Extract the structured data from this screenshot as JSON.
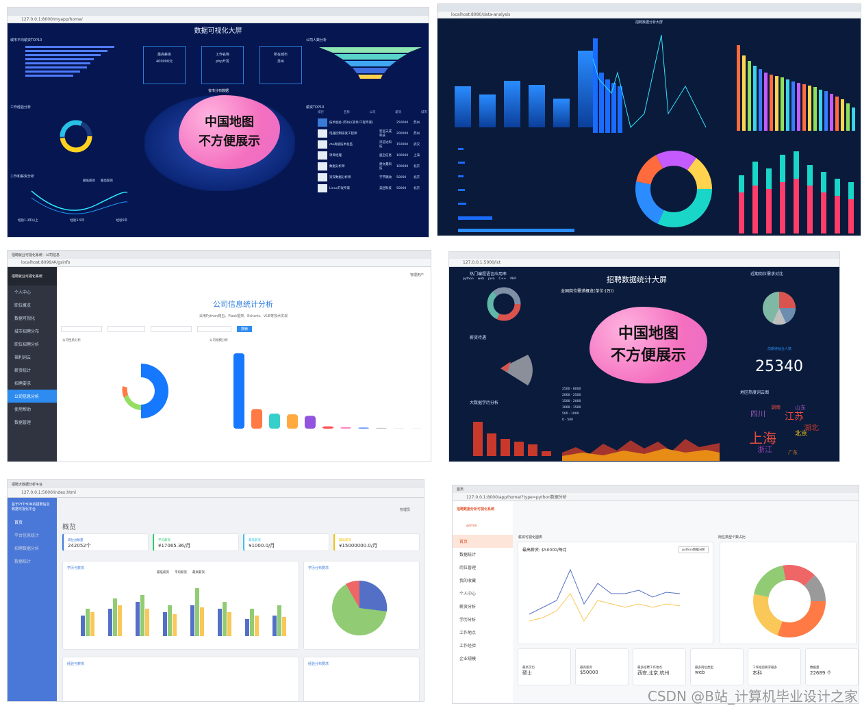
{
  "p1": {
    "url": "127.0.0.1:8000/myapp/home/",
    "title": "数据可视化大屏",
    "city_top": "城市平均薪资TOP10",
    "company_top": "公司人数分析",
    "kpi": [
      {
        "label": "最高薪资",
        "value": "400000元"
      },
      {
        "label": "工作名称",
        "value": "php开发"
      },
      {
        "label": "所在城市",
        "value": "苏州"
      }
    ],
    "province_map": "省市分布数据",
    "salary_top": "薪资TOP10",
    "work_exp": "工作经验分析",
    "edu": "工作和薪资分析",
    "table_cols": [
      "排行",
      "名称",
      "公司",
      "薪资",
      "城市"
    ],
    "table_rows": [
      [
        "技术副总 (苏州)(软件/工程专家)",
        "",
        "250000",
        "苏州"
      ],
      [
        "电器控制研发工程师",
        "宏远天成科技",
        "200000",
        "苏州"
      ],
      [
        "cto高级技术总监",
        "深信达科技",
        "150000",
        "武汉"
      ],
      [
        "项目经理",
        "盛启信息",
        "100000",
        "上海"
      ],
      [
        "数据分析师",
        "建文鑫科技",
        "100000",
        "北京"
      ],
      [
        "资深数据分析师",
        "字节跳动",
        "50000",
        "北京"
      ],
      [
        "Linux开发专家",
        "美团科技",
        "50000",
        "北京"
      ]
    ],
    "legend": [
      "最低薪资",
      "最高薪资"
    ],
    "x_labels": [
      "经验1-3年以上",
      "经验3-5年",
      "经验5年"
    ]
  },
  "p2": {
    "url": "localhost:8080/data-analysis",
    "title": "招聘数据分析大屏"
  },
  "p3": {
    "tab": "招聘就业可视化系统 - 公司信息",
    "url": "localhost:8099/#/gsinfo",
    "brand": "招聘就业可视化系统",
    "menu": [
      "个人中心",
      "职位概览",
      "数据可视化",
      "城市招聘分布",
      "职位招聘分析",
      "福利词云",
      "薪资统计",
      "招聘要求",
      "公司信息分析",
      "使用帮助",
      "数据管理"
    ],
    "heading": "公司信息统计分析",
    "sub": "采用Python爬虫、Flask框架、Echarts、VUE等技术实现",
    "search_btn": "搜索",
    "chart_left": "公司性质分析",
    "chart_right": "公司规模分析",
    "bar_values": [
      1000,
      260,
      200,
      190,
      170,
      30,
      20,
      15,
      10,
      5,
      3
    ],
    "user": "管理用户"
  },
  "p4": {
    "url": "127.0.0.1:5000/ict",
    "title": "招聘数据统计大屏",
    "hot_lang": "热门编程语言应用率",
    "lang_legend": [
      "python",
      "web",
      "java",
      "C++",
      "PHP"
    ],
    "salary": "薪资待遇",
    "national": "全国岗位需求概览(单位:(万))",
    "recent": "近期岗位需求对比",
    "edu": "大数据学历分析",
    "jobseekers": "前期待就业人数",
    "count": "25340",
    "cloud": "地区热度词云图",
    "map_scale": [
      "2500 - 8000",
      "2000 - 2500",
      "1500 - 2000",
      "1000 - 1500",
      "500 - 1000",
      "0 - 500"
    ],
    "cities": [
      "上海",
      "北京",
      "江苏",
      "湖北",
      "浙江",
      "四川",
      "广东",
      "湖南",
      "山东"
    ]
  },
  "map_placeholder": [
    "中国地图",
    "不方便展示"
  ],
  "p5": {
    "tab": "招聘大数据分析平台",
    "url": "127.0.0.1:5000/index.html",
    "brand": "基于PYTHON的招聘信息数据可视化平台",
    "menu": [
      "首页",
      "平台信息统计",
      "招聘数据分析",
      "数据统计"
    ],
    "heading": "概览",
    "cards": [
      {
        "label": "岗位总数量",
        "value": "242052个"
      },
      {
        "label": "平均薪资",
        "value": "¥17065.36/月"
      },
      {
        "label": "最低薪资",
        "value": "¥1000.0/月"
      },
      {
        "label": "最高薪资",
        "value": "¥15000000.0/月"
      }
    ],
    "chart1": "学历与薪资",
    "chart2": "学历分布要求",
    "chart3": "经验与薪资",
    "chart4": "经验分布要求",
    "legend": [
      "最低薪资",
      "平均薪资",
      "最高薪资"
    ],
    "user": "管理员"
  },
  "p6": {
    "tab": "首页",
    "url": "127.0.0.1:8000/app/home/?type=python数据分析",
    "brand": "招聘数据分析可视化系统",
    "user": "admin",
    "menu": [
      "首页",
      "数据统计",
      "岗位管理",
      "我的收藏",
      "个人中心",
      "薪资分析",
      "学历分析",
      "工作地点",
      "工作经验",
      "企业规模"
    ],
    "chart1": "薪资可视化图表",
    "chart2": "岗位类型个数占比",
    "avg_salary": "最高薪资: $50000/每月",
    "select": "python数据分析",
    "stats": [
      {
        "label": "最高学历",
        "value": "硕士"
      },
      {
        "label": "最高薪资",
        "value": "$50000"
      },
      {
        "label": "最多招聘工作地点",
        "value": "西安,北京,杭州"
      },
      {
        "label": "最多岗位类型",
        "value": "web"
      },
      {
        "label": "工作经验要求最多",
        "value": "本科"
      },
      {
        "label": "数据量",
        "value": "22689 个"
      }
    ]
  },
  "watermark": "CSDN @B站_计算机毕业设计之家"
}
